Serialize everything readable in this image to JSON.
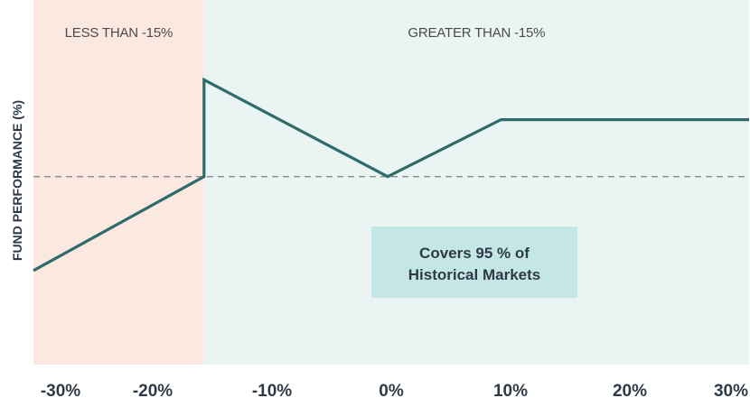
{
  "chart_data": {
    "type": "line",
    "ylabel": "FUND PERFORMANCE (%)",
    "xlabel": "",
    "title": "",
    "x_ticks": [
      -30,
      -20,
      -10,
      0,
      10,
      20,
      30
    ],
    "x_tick_labels": [
      "-30%",
      "-20%",
      "-10%",
      "0%",
      "10%",
      "20%",
      "30%"
    ],
    "xlim": [
      -30,
      30
    ],
    "regions": [
      {
        "label": "LESS THAN -15%",
        "x_start": -30,
        "x_end": -15.7,
        "color": "#fbe8e0"
      },
      {
        "label": "GREATER THAN -15%",
        "x_start": -15.7,
        "x_end": 30,
        "color": "#eaf5f3"
      }
    ],
    "baseline": {
      "y": 0,
      "style": "dashed",
      "color": "#888888"
    },
    "series": [
      {
        "color": "#2e6b6a",
        "points": [
          [
            -30,
            -0.33
          ],
          [
            -15.7,
            0
          ],
          [
            -15.7,
            0.34
          ],
          [
            -0.3,
            0
          ],
          [
            9.2,
            0.2
          ],
          [
            30,
            0.2
          ]
        ]
      }
    ],
    "ylim": [
      -0.66,
      0.62
    ],
    "callout": {
      "line1": "Covers 95 % of",
      "line2": "Historical Markets",
      "color": "#c4e6e5"
    }
  }
}
